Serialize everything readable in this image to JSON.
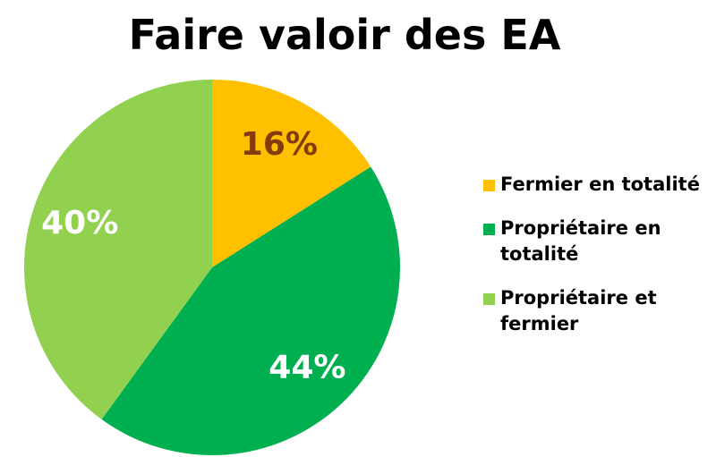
{
  "chart_data": {
    "type": "pie",
    "title": "Faire valoir des EA",
    "categories": [
      "Fermier en totalité",
      "Propriétaire en totalité",
      "Propriétaire et fermier"
    ],
    "values": [
      16,
      44,
      40
    ],
    "value_labels": [
      "16%",
      "44%",
      "40%"
    ],
    "colors": [
      "#FFC000",
      "#00B050",
      "#92D050"
    ],
    "label_colors": [
      "#843C0C",
      "#FFFFFF",
      "#FFFFFF"
    ],
    "legend": "right"
  }
}
